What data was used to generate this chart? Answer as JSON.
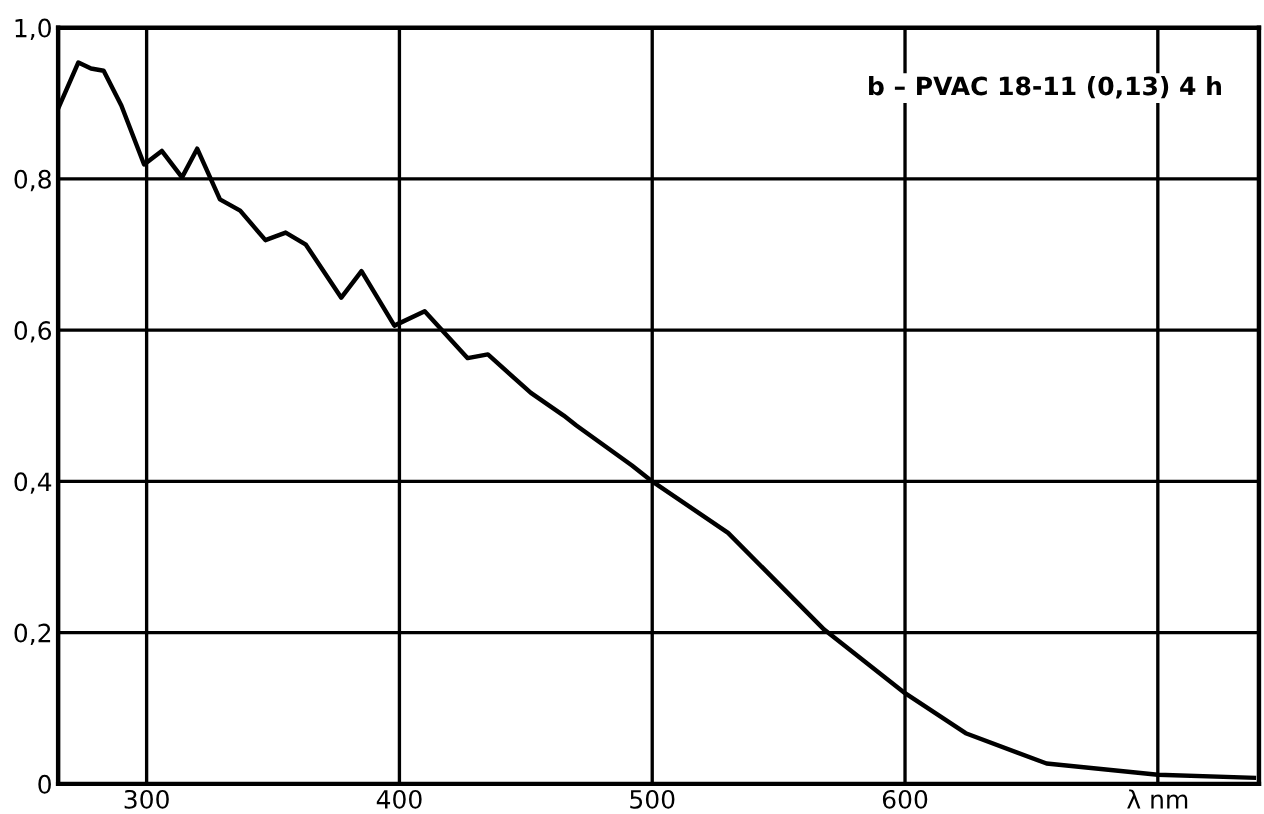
{
  "chart_data": {
    "type": "line",
    "annotations": [
      "b – PVAC 18-11 (0,13) 4 h"
    ],
    "series": [
      {
        "color": "#000000",
        "x": [
          265,
          273,
          278,
          283,
          290,
          299,
          306,
          314,
          320,
          329,
          337,
          347,
          355,
          363,
          377,
          385,
          398,
          410,
          427,
          435,
          452,
          465,
          470,
          492,
          500,
          530,
          568,
          600,
          624,
          656,
          700,
          738
        ],
        "values": [
          0.893,
          0.954,
          0.946,
          0.943,
          0.897,
          0.819,
          0.837,
          0.802,
          0.84,
          0.773,
          0.758,
          0.719,
          0.729,
          0.713,
          0.643,
          0.678,
          0.606,
          0.625,
          0.563,
          0.568,
          0.517,
          0.487,
          0.474,
          0.421,
          0.4,
          0.332,
          0.204,
          0.12,
          0.067,
          0.027,
          0.012,
          0.008
        ]
      }
    ],
    "xlim": [
      265,
      740
    ],
    "xticks": [
      300,
      400,
      500,
      600,
      {
        "value": 700,
        "label": "λ nm"
      }
    ],
    "ylim": [
      0,
      1.0
    ],
    "yticks": [
      0,
      {
        "value": 0.2,
        "label": "0,2"
      },
      {
        "value": 0.4,
        "label": "0,4"
      },
      {
        "value": 0.6,
        "label": "0,6"
      },
      {
        "value": 0.8,
        "label": "0,8"
      },
      {
        "value": 1.0,
        "label": "1,0"
      }
    ],
    "grid": true,
    "marker": "none",
    "line_style": "solid"
  }
}
